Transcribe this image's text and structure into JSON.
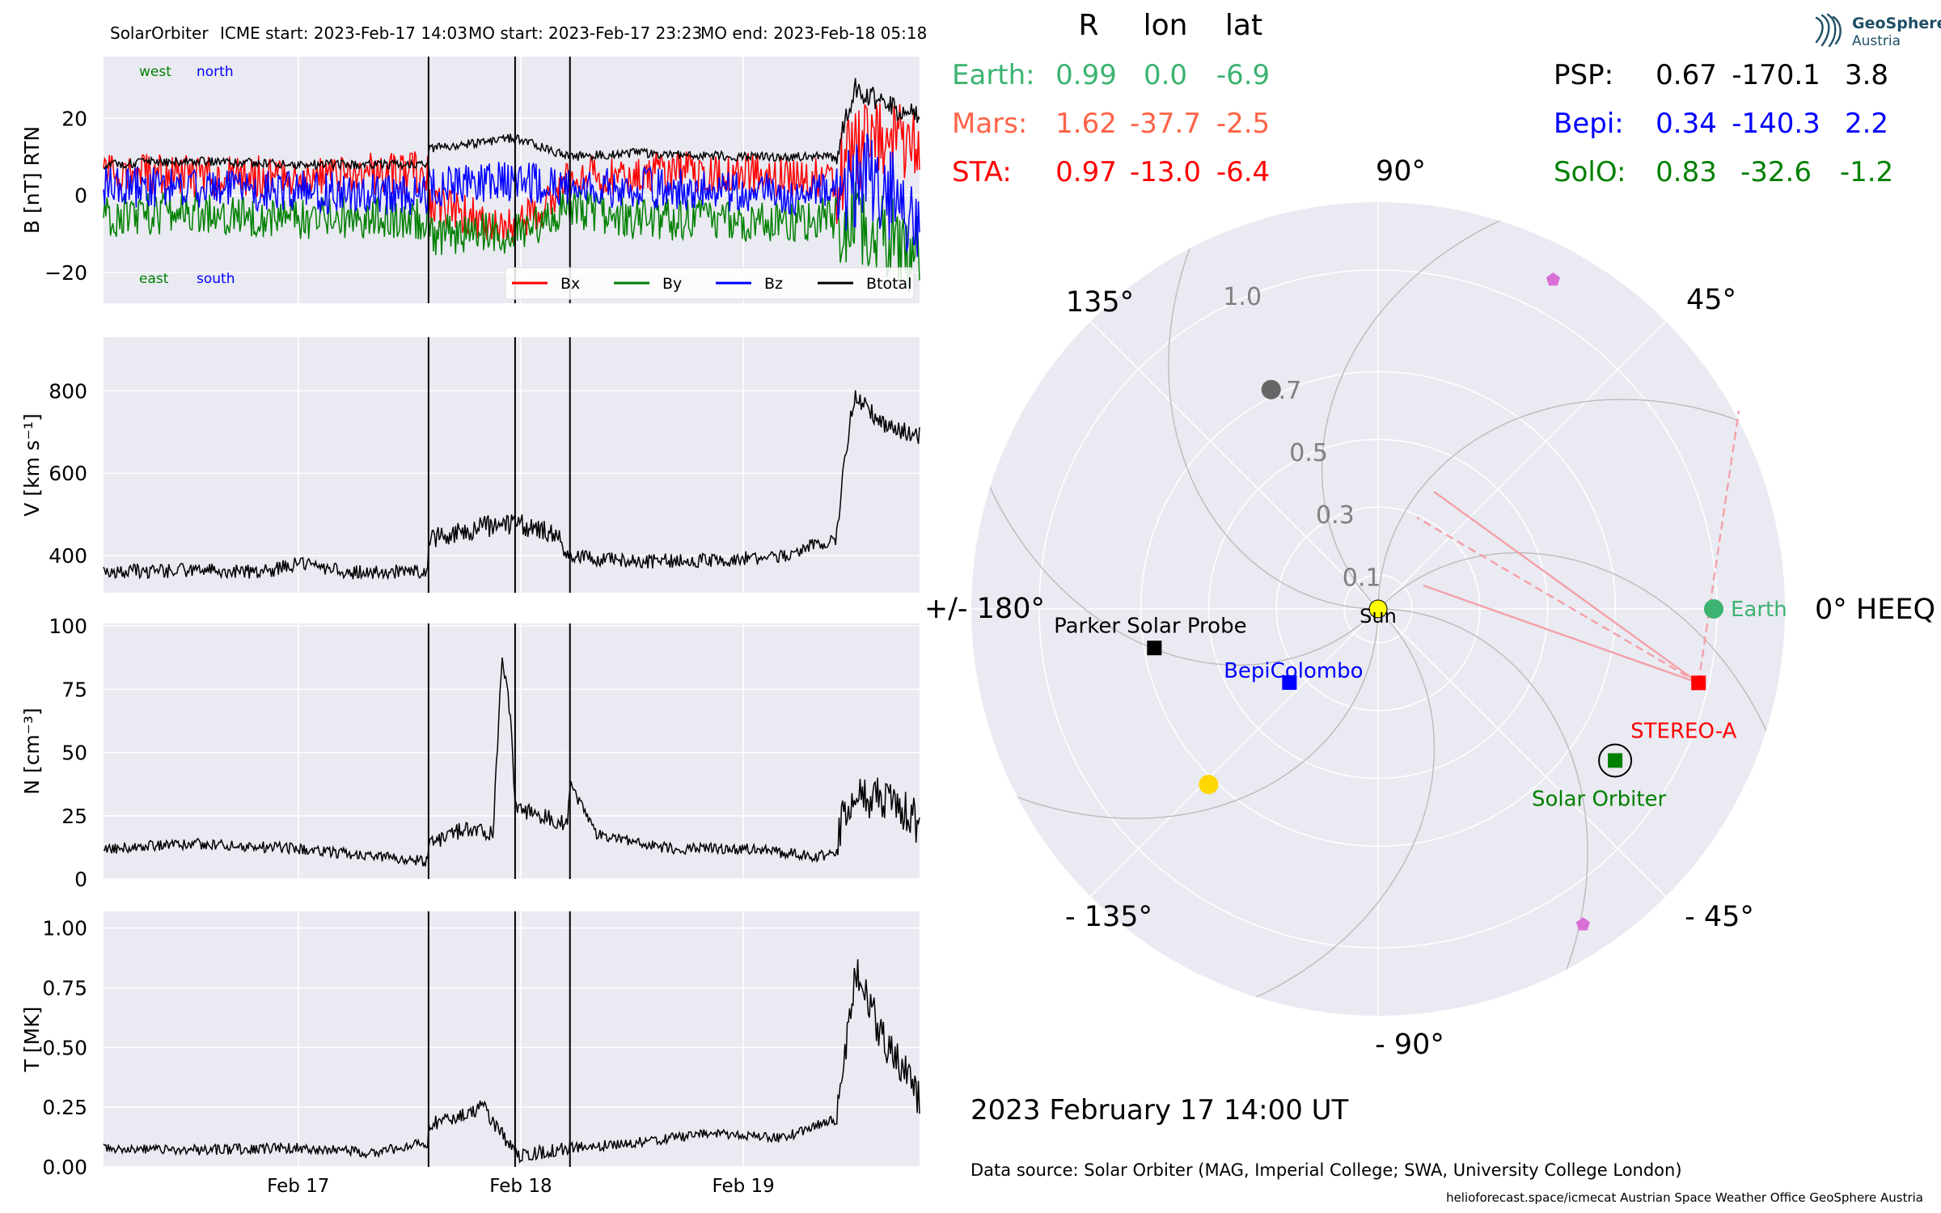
{
  "colors": {
    "panel_bg": "#eaeaf2",
    "grid": "#ffffff",
    "bx": "#ff0000",
    "by": "#008000",
    "bz": "#0000ff",
    "btotal": "#000000",
    "earth": "#3cb371",
    "mars": "#ff6347",
    "sta": "#ff0000",
    "psp": "#000000",
    "bepi": "#0000ff",
    "solo": "#008000",
    "sun": "#ffff00",
    "planet_violet": "#da70d6",
    "planet_gold": "#ffd700",
    "planet_grey": "#666666"
  },
  "header": {
    "spacecraft": "SolarOrbiter",
    "icme_start": "ICME start: 2023-Feb-17 14:03",
    "mo_start": "MO start: 2023-Feb-17 23:23",
    "mo_end": "MO end: 2023-Feb-18 05:18"
  },
  "chart_data": [
    {
      "type": "line",
      "panel": "magnetic_field",
      "ylabel": "B [nT] RTN",
      "ylim": [
        -36,
        36
      ],
      "yticks": [
        "20",
        "0",
        "−20"
      ],
      "ytick_values": [
        20,
        0,
        -20
      ],
      "xlim": [
        "2023-02-16 03:00",
        "2023-02-19 19:00"
      ],
      "xticks": [
        "Feb 17",
        "Feb 18",
        "Feb 19"
      ],
      "annotations": {
        "top": [
          "west",
          "north"
        ],
        "bottom": [
          "east",
          "south"
        ]
      },
      "legend": [
        "Bx",
        "By",
        "Bz",
        "Btotal"
      ],
      "legend_placement": "lower right",
      "grid": true,
      "series": [
        {
          "name": "Bx",
          "points": [
            [
              "2023-02-16 03:00",
              6
            ],
            [
              "2023-02-16 12:00",
              5
            ],
            [
              "2023-02-17 00:00",
              5
            ],
            [
              "2023-02-17 14:00",
              6
            ],
            [
              "2023-02-17 14:03",
              -2
            ],
            [
              "2023-02-17 23:23",
              -9
            ],
            [
              "2023-02-18 05:18",
              4
            ],
            [
              "2023-02-18 12:00",
              6
            ],
            [
              "2023-02-19 00:00",
              6
            ],
            [
              "2023-02-19 10:00",
              4
            ],
            [
              "2023-02-19 13:00",
              15
            ],
            [
              "2023-02-19 19:00",
              12
            ]
          ]
        },
        {
          "name": "By",
          "points": [
            [
              "2023-02-16 03:00",
              -6
            ],
            [
              "2023-02-16 12:00",
              -4
            ],
            [
              "2023-02-17 00:00",
              -6
            ],
            [
              "2023-02-17 14:00",
              -6
            ],
            [
              "2023-02-17 14:03",
              -10
            ],
            [
              "2023-02-17 23:23",
              -10
            ],
            [
              "2023-02-18 05:18",
              -3
            ],
            [
              "2023-02-18 12:00",
              -6
            ],
            [
              "2023-02-19 00:00",
              -7
            ],
            [
              "2023-02-19 10:00",
              -6
            ],
            [
              "2023-02-19 13:00",
              -8
            ],
            [
              "2023-02-19 19:00",
              -15
            ]
          ]
        },
        {
          "name": "Bz",
          "points": [
            [
              "2023-02-16 03:00",
              2
            ],
            [
              "2023-02-16 12:00",
              2
            ],
            [
              "2023-02-17 00:00",
              1
            ],
            [
              "2023-02-17 14:00",
              0
            ],
            [
              "2023-02-17 14:03",
              2
            ],
            [
              "2023-02-17 23:23",
              4
            ],
            [
              "2023-02-18 05:18",
              2
            ],
            [
              "2023-02-18 12:00",
              2
            ],
            [
              "2023-02-19 00:00",
              1
            ],
            [
              "2023-02-19 10:00",
              0
            ],
            [
              "2023-02-19 13:00",
              5
            ],
            [
              "2023-02-19 19:00",
              -5
            ]
          ]
        },
        {
          "name": "Btotal",
          "points": [
            [
              "2023-02-16 03:00",
              8
            ],
            [
              "2023-02-16 12:00",
              9
            ],
            [
              "2023-02-17 00:00",
              8
            ],
            [
              "2023-02-17 14:00",
              8
            ],
            [
              "2023-02-17 14:03",
              12
            ],
            [
              "2023-02-17 23:23",
              15
            ],
            [
              "2023-02-18 05:18",
              10
            ],
            [
              "2023-02-18 12:00",
              11
            ],
            [
              "2023-02-19 00:00",
              10
            ],
            [
              "2023-02-19 10:00",
              10
            ],
            [
              "2023-02-19 12:00",
              28
            ],
            [
              "2023-02-19 15:00",
              24
            ],
            [
              "2023-02-19 19:00",
              20
            ]
          ]
        }
      ]
    },
    {
      "type": "line",
      "panel": "speed",
      "ylabel": "V [km s⁻¹]",
      "ylim": [
        310,
        930
      ],
      "yticks": [
        "800",
        "600",
        "400"
      ],
      "ytick_values": [
        800,
        600,
        400
      ],
      "xlim": [
        "2023-02-16 03:00",
        "2023-02-19 19:00"
      ],
      "xticks": [
        "Feb 17",
        "Feb 18",
        "Feb 19"
      ],
      "grid": true,
      "series": [
        {
          "name": "",
          "points": [
            [
              "2023-02-16 03:00",
              360
            ],
            [
              "2023-02-16 12:00",
              365
            ],
            [
              "2023-02-16 20:00",
              360
            ],
            [
              "2023-02-17 00:00",
              380
            ],
            [
              "2023-02-17 06:00",
              360
            ],
            [
              "2023-02-17 14:00",
              360
            ],
            [
              "2023-02-17 14:03",
              440
            ],
            [
              "2023-02-17 20:00",
              470
            ],
            [
              "2023-02-18 00:00",
              475
            ],
            [
              "2023-02-18 04:00",
              450
            ],
            [
              "2023-02-18 05:18",
              400
            ],
            [
              "2023-02-18 12:00",
              385
            ],
            [
              "2023-02-18 20:00",
              390
            ],
            [
              "2023-02-19 04:00",
              395
            ],
            [
              "2023-02-19 08:00",
              430
            ],
            [
              "2023-02-19 10:00",
              440
            ],
            [
              "2023-02-19 11:00",
              650
            ],
            [
              "2023-02-19 12:00",
              790
            ],
            [
              "2023-02-19 15:00",
              720
            ],
            [
              "2023-02-19 19:00",
              690
            ]
          ]
        }
      ]
    },
    {
      "type": "line",
      "panel": "density",
      "ylabel": "N [cm⁻³]",
      "ylim": [
        0,
        101
      ],
      "yticks": [
        "100",
        "75",
        "50",
        "25",
        "0"
      ],
      "ytick_values": [
        100,
        75,
        50,
        25,
        0
      ],
      "xlim": [
        "2023-02-16 03:00",
        "2023-02-19 19:00"
      ],
      "xticks": [
        "Feb 17",
        "Feb 18",
        "Feb 19"
      ],
      "grid": true,
      "series": [
        {
          "name": "",
          "points": [
            [
              "2023-02-16 03:00",
              12
            ],
            [
              "2023-02-16 12:00",
              14
            ],
            [
              "2023-02-17 00:00",
              12
            ],
            [
              "2023-02-17 08:00",
              9
            ],
            [
              "2023-02-17 14:00",
              7
            ],
            [
              "2023-02-17 14:03",
              14
            ],
            [
              "2023-02-17 18:00",
              20
            ],
            [
              "2023-02-17 21:00",
              18
            ],
            [
              "2023-02-17 22:00",
              90
            ],
            [
              "2023-02-17 23:00",
              60
            ],
            [
              "2023-02-17 23:23",
              28
            ],
            [
              "2023-02-18 05:00",
              22
            ],
            [
              "2023-02-18 05:18",
              38
            ],
            [
              "2023-02-18 08:00",
              18
            ],
            [
              "2023-02-18 16:00",
              12
            ],
            [
              "2023-02-19 00:00",
              12
            ],
            [
              "2023-02-19 08:00",
              9
            ],
            [
              "2023-02-19 10:00",
              10
            ],
            [
              "2023-02-19 11:00",
              30
            ],
            [
              "2023-02-19 15:00",
              32
            ],
            [
              "2023-02-19 19:00",
              22
            ]
          ]
        }
      ]
    },
    {
      "type": "line",
      "panel": "temperature",
      "ylabel": "T [MK]",
      "ylim": [
        0,
        1.07
      ],
      "yticks": [
        "1.00",
        "0.75",
        "0.50",
        "0.25",
        "0.00"
      ],
      "ytick_values": [
        1.0,
        0.75,
        0.5,
        0.25,
        0.0
      ],
      "xlim": [
        "2023-02-16 03:00",
        "2023-02-19 19:00"
      ],
      "xticks": [
        "Feb 17",
        "Feb 18",
        "Feb 19"
      ],
      "grid": true,
      "series": [
        {
          "name": "",
          "points": [
            [
              "2023-02-16 03:00",
              0.08
            ],
            [
              "2023-02-16 12:00",
              0.07
            ],
            [
              "2023-02-17 00:00",
              0.08
            ],
            [
              "2023-02-17 08:00",
              0.06
            ],
            [
              "2023-02-17 14:00",
              0.1
            ],
            [
              "2023-02-17 14:03",
              0.18
            ],
            [
              "2023-02-17 20:00",
              0.25
            ],
            [
              "2023-02-17 23:23",
              0.05
            ],
            [
              "2023-02-18 05:18",
              0.08
            ],
            [
              "2023-02-18 12:00",
              0.1
            ],
            [
              "2023-02-18 20:00",
              0.14
            ],
            [
              "2023-02-19 04:00",
              0.12
            ],
            [
              "2023-02-19 10:00",
              0.2
            ],
            [
              "2023-02-19 11:00",
              0.5
            ],
            [
              "2023-02-19 12:00",
              0.82
            ],
            [
              "2023-02-19 15:00",
              0.55
            ],
            [
              "2023-02-19 19:00",
              0.3
            ]
          ]
        }
      ]
    },
    {
      "type": "scatter",
      "panel": "heliospheric_position_map",
      "projection": "polar",
      "rlabels": [
        "0.1",
        "0.3",
        "0.5",
        "0.7",
        "1.0"
      ],
      "rlabel_values": [
        0.1,
        0.3,
        0.5,
        0.7,
        1.0
      ],
      "rmax": 1.2,
      "angle_labels": [
        {
          "deg": 0,
          "text": "0° HEEQ"
        },
        {
          "deg": 45,
          "text": "45°"
        },
        {
          "deg": 90,
          "text": "90°"
        },
        {
          "deg": 135,
          "text": "135°"
        },
        {
          "deg": 180,
          "text": "+/- 180°"
        },
        {
          "deg": -135,
          "text": "- 135°"
        },
        {
          "deg": -90,
          "text": "- 90°"
        },
        {
          "deg": -45,
          "text": "- 45°"
        }
      ],
      "objects": [
        {
          "name": "Sun",
          "r": 0.0,
          "lon": 0.0,
          "marker": "circle",
          "color_key": "sun"
        },
        {
          "name": "Earth",
          "r": 0.99,
          "lon": 0.0,
          "marker": "circle",
          "color_key": "earth"
        },
        {
          "name": "STEREO-A",
          "r": 0.97,
          "lon": -13.0,
          "marker": "square",
          "color_key": "sta"
        },
        {
          "name": "Solar Orbiter",
          "r": 0.83,
          "lon": -32.6,
          "marker": "square-ringed",
          "color_key": "solo"
        },
        {
          "name": "BepiColombo",
          "r": 0.34,
          "lon": -140.3,
          "marker": "square",
          "color_key": "bepi"
        },
        {
          "name": "Parker Solar Probe",
          "r": 0.67,
          "lon": -170.1,
          "marker": "square",
          "color_key": "psp"
        },
        {
          "name": "",
          "r": 0.72,
          "lon": 116.0,
          "marker": "circle",
          "color_key": "planet_grey"
        },
        {
          "name": "",
          "r": 0.72,
          "lon": -134.0,
          "marker": "circle",
          "color_key": "planet_gold"
        },
        {
          "name": "",
          "r": 1.1,
          "lon": 62.0,
          "marker": "pentagon",
          "color_key": "planet_violet"
        },
        {
          "name": "",
          "r": 1.11,
          "lon": -57.0,
          "marker": "pentagon",
          "color_key": "planet_violet"
        }
      ]
    }
  ],
  "positions_table": {
    "col_headers": [
      "R",
      "lon",
      "lat"
    ],
    "left": [
      {
        "name": "Earth:",
        "values": [
          "0.99",
          "0.0",
          "-6.9"
        ],
        "color_key": "earth"
      },
      {
        "name": "Mars:",
        "values": [
          "1.62",
          "-37.7",
          "-2.5"
        ],
        "color_key": "mars"
      },
      {
        "name": "STA:",
        "values": [
          "0.97",
          "-13.0",
          "-6.4"
        ],
        "color_key": "sta"
      }
    ],
    "right": [
      {
        "name": "PSP:",
        "values": [
          "0.67",
          "-170.1",
          "3.8"
        ],
        "color_key": "psp"
      },
      {
        "name": "Bepi:",
        "values": [
          "0.34",
          "-140.3",
          "2.2"
        ],
        "color_key": "bepi"
      },
      {
        "name": "SolO:",
        "values": [
          "0.83",
          "-32.6",
          "-1.2"
        ],
        "color_key": "solo"
      }
    ]
  },
  "footer": {
    "timestamp": "2023 February 17  14:00 UT",
    "data_source": "Data source: Solar Orbiter (MAG, Imperial College; SWA, University College London)",
    "credits": "helioforecast.space/icmecat   Austrian Space Weather Office   GeoSphere Austria"
  },
  "logo": {
    "name": "GeoSphere",
    "sub": "Austria"
  }
}
